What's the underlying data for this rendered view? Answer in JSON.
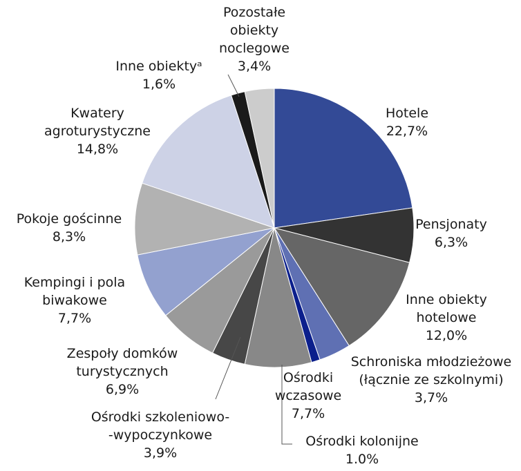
{
  "chart_data": {
    "type": "pie",
    "categories": [
      "Hotele",
      "Pensjonaty",
      "Inne obiekty\nhotelowe",
      "Schroniska młodzieżowe\n(łącznie ze szkolnymi)",
      "Ośrodki kolonijne",
      "Ośrodki\nwczasowe",
      "Ośrodki szkoleniowo-\n-wypoczynkowe",
      "Zespoły domków\nturystycznych",
      "Kempingi i pola\nbiwakowe",
      "Pokoje gościnne",
      "Kwatery\nagroturystyczne",
      "Inne obiektyᵃ",
      "Pozostałe\nobiekty\nnoclegowe"
    ],
    "values": [
      22.7,
      6.3,
      12.0,
      3.7,
      1.0,
      7.7,
      3.9,
      6.9,
      7.7,
      8.3,
      14.8,
      1.6,
      3.4
    ],
    "value_labels": [
      "22,7%",
      "6,3%",
      "12,0%",
      "3,7%",
      "1.0%",
      "7,7%",
      "3,9%",
      "6,9%",
      "7,7%",
      "8,3%",
      "14,8%",
      "1,6%",
      "3,4%"
    ],
    "colors": [
      "#334a96",
      "#333333",
      "#666666",
      "#5f70b3",
      "#0b1f8c",
      "#888888",
      "#474747",
      "#9a9a9a",
      "#93a1cf",
      "#b2b2b2",
      "#cdd2e6",
      "#1a1a1a",
      "#cccccc"
    ]
  }
}
